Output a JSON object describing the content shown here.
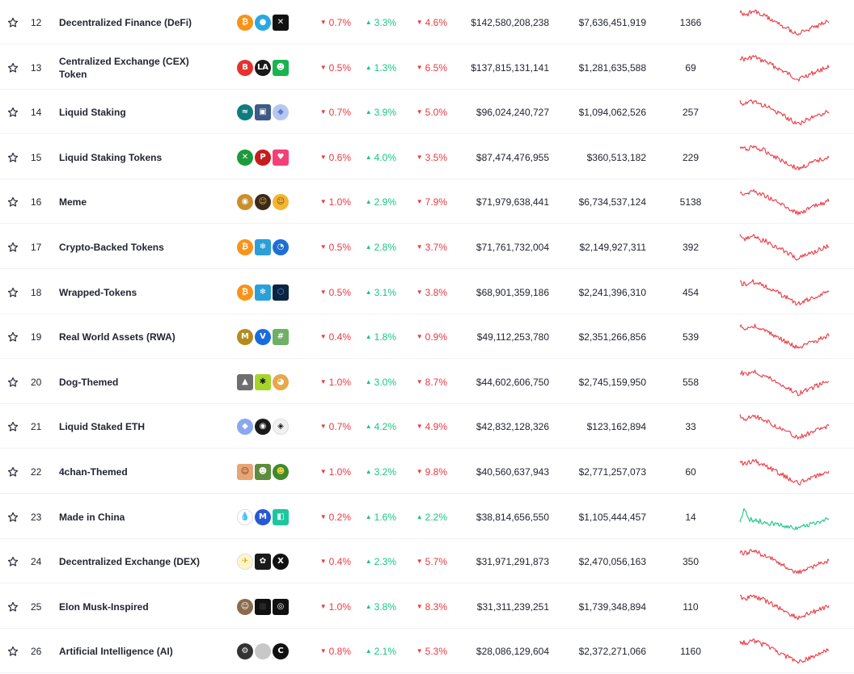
{
  "colors": {
    "down": "#ea3943",
    "up": "#16c784",
    "text": "#222531",
    "border": "#eff2f5"
  },
  "icons": {
    "star": "star-outline-icon",
    "down_arrow": "caret-down-icon",
    "up_arrow": "caret-up-icon"
  },
  "rows": [
    {
      "rank": "12",
      "name": [
        "Decentralized Finance (DeFi)"
      ],
      "coins": [
        [
          "#f7931a",
          "₿",
          "circle",
          "#fff"
        ],
        [
          "#29a9e0",
          "●",
          "circle",
          "#fff"
        ],
        [
          "#111111",
          "✕",
          "sq",
          "#fff"
        ]
      ],
      "p1": "0.7%",
      "p1dir": "down",
      "p2": "3.3%",
      "p2dir": "up",
      "p3": "4.6%",
      "p3dir": "down",
      "mcap": "$142,580,208,238",
      "vol": "$7,636,451,919",
      "count": "1366",
      "trend": "down"
    },
    {
      "rank": "13",
      "name": [
        "Centralized Exchange (CEX)",
        "Token"
      ],
      "coins": [
        [
          "#e6312e",
          "B",
          "circle",
          "#fff"
        ],
        [
          "#1a1a1a",
          "LA",
          "circle",
          "#fff"
        ],
        [
          "#19b34f",
          "☻",
          "sq",
          "#fff"
        ]
      ],
      "p1": "0.5%",
      "p1dir": "down",
      "p2": "1.3%",
      "p2dir": "up",
      "p3": "6.5%",
      "p3dir": "down",
      "mcap": "$137,815,131,141",
      "vol": "$1,281,635,588",
      "count": "69",
      "trend": "down"
    },
    {
      "rank": "14",
      "name": [
        "Liquid Staking"
      ],
      "coins": [
        [
          "#0f7c80",
          "≈",
          "circle",
          "#fff"
        ],
        [
          "#3d5a88",
          "▣",
          "sq",
          "#fff"
        ],
        [
          "#b7c8f0",
          "◆",
          "circle",
          "#5a7bd8"
        ]
      ],
      "p1": "0.7%",
      "p1dir": "down",
      "p2": "3.9%",
      "p2dir": "up",
      "p3": "5.0%",
      "p3dir": "down",
      "mcap": "$96,024,240,727",
      "vol": "$1,094,062,526",
      "count": "257",
      "trend": "down"
    },
    {
      "rank": "15",
      "name": [
        "Liquid Staking Tokens"
      ],
      "coins": [
        [
          "#1c9a3c",
          "✕",
          "circle",
          "#fff"
        ],
        [
          "#c51d1d",
          "P",
          "circle",
          "#fff"
        ],
        [
          "#f43f78",
          "♥",
          "sq",
          "#fff"
        ]
      ],
      "p1": "0.6%",
      "p1dir": "down",
      "p2": "4.0%",
      "p2dir": "up",
      "p3": "3.5%",
      "p3dir": "down",
      "mcap": "$87,474,476,955",
      "vol": "$360,513,182",
      "count": "229",
      "trend": "down"
    },
    {
      "rank": "16",
      "name": [
        "Meme"
      ],
      "coins": [
        [
          "#c98f2c",
          "◉",
          "circle",
          "#fff"
        ],
        [
          "#3a2a1a",
          "☺",
          "circle",
          "#f5b642"
        ],
        [
          "#f2b632",
          "☺",
          "circle",
          "#7a4a10"
        ]
      ],
      "p1": "1.0%",
      "p1dir": "down",
      "p2": "2.9%",
      "p2dir": "up",
      "p3": "7.9%",
      "p3dir": "down",
      "mcap": "$71,979,638,441",
      "vol": "$6,734,537,124",
      "count": "5138",
      "trend": "down"
    },
    {
      "rank": "17",
      "name": [
        "Crypto-Backed Tokens"
      ],
      "coins": [
        [
          "#f7931a",
          "₿",
          "circle",
          "#fff"
        ],
        [
          "#2ba0d8",
          "❄",
          "sq",
          "#fff"
        ],
        [
          "#1f6fd1",
          "◔",
          "circle",
          "#fff"
        ]
      ],
      "p1": "0.5%",
      "p1dir": "down",
      "p2": "2.8%",
      "p2dir": "up",
      "p3": "3.7%",
      "p3dir": "down",
      "mcap": "$71,761,732,004",
      "vol": "$2,149,927,311",
      "count": "392",
      "trend": "down"
    },
    {
      "rank": "18",
      "name": [
        "Wrapped-Tokens"
      ],
      "coins": [
        [
          "#f7931a",
          "₿",
          "circle",
          "#fff"
        ],
        [
          "#2ba0d8",
          "❄",
          "sq",
          "#fff"
        ],
        [
          "#0b2440",
          "⬡",
          "sq",
          "#3fa0ff"
        ]
      ],
      "p1": "0.5%",
      "p1dir": "down",
      "p2": "3.1%",
      "p2dir": "up",
      "p3": "3.8%",
      "p3dir": "down",
      "mcap": "$68,901,359,186",
      "vol": "$2,241,396,310",
      "count": "454",
      "trend": "down"
    },
    {
      "rank": "19",
      "name": [
        "Real World Assets (RWA)"
      ],
      "coins": [
        [
          "#b58a1d",
          "M",
          "circle",
          "#fff"
        ],
        [
          "#1a6be0",
          "V",
          "circle",
          "#fff"
        ],
        [
          "#6fb066",
          "#",
          "sq",
          "#fff"
        ]
      ],
      "p1": "0.4%",
      "p1dir": "down",
      "p2": "1.8%",
      "p2dir": "up",
      "p3": "0.9%",
      "p3dir": "down",
      "mcap": "$49,112,253,780",
      "vol": "$2,351,266,856",
      "count": "539",
      "trend": "down"
    },
    {
      "rank": "20",
      "name": [
        "Dog-Themed"
      ],
      "coins": [
        [
          "#6e6e6e",
          "▲",
          "sq",
          "#fff"
        ],
        [
          "#a4d62a",
          "✱",
          "sq",
          "#1a1a1a"
        ],
        [
          "#e5a84a",
          "◕",
          "circle",
          "#fff"
        ]
      ],
      "p1": "1.0%",
      "p1dir": "down",
      "p2": "3.0%",
      "p2dir": "up",
      "p3": "8.7%",
      "p3dir": "down",
      "mcap": "$44,602,606,750",
      "vol": "$2,745,159,950",
      "count": "558",
      "trend": "down"
    },
    {
      "rank": "21",
      "name": [
        "Liquid Staked ETH"
      ],
      "coins": [
        [
          "#8aa8ee",
          "◆",
          "circle",
          "#fff"
        ],
        [
          "#1a1a1a",
          "◉",
          "circle",
          "#fff"
        ],
        [
          "#f1f1f1",
          "◈",
          "circle",
          "#1a1a1a"
        ]
      ],
      "p1": "0.7%",
      "p1dir": "down",
      "p2": "4.2%",
      "p2dir": "up",
      "p3": "4.9%",
      "p3dir": "down",
      "mcap": "$42,832,128,326",
      "vol": "$123,162,894",
      "count": "33",
      "trend": "down"
    },
    {
      "rank": "22",
      "name": [
        "4chan-Themed"
      ],
      "coins": [
        [
          "#e7a574",
          "☺",
          "sq",
          "#6b3a1c"
        ],
        [
          "#5c8d3e",
          "☻",
          "sq",
          "#fff"
        ],
        [
          "#3f8a2a",
          "☻",
          "circle",
          "#f2d04a"
        ]
      ],
      "p1": "1.0%",
      "p1dir": "down",
      "p2": "3.2%",
      "p2dir": "up",
      "p3": "9.8%",
      "p3dir": "down",
      "mcap": "$40,560,637,943",
      "vol": "$2,771,257,073",
      "count": "60",
      "trend": "down"
    },
    {
      "rank": "23",
      "name": [
        "Made in China"
      ],
      "coins": [
        [
          "#ffffff",
          "💧",
          "circle",
          "#1f6fd1"
        ],
        [
          "#2958d6",
          "M",
          "circle",
          "#fff"
        ],
        [
          "#1cc7a0",
          "◧",
          "sq",
          "#fff"
        ]
      ],
      "p1": "0.2%",
      "p1dir": "down",
      "p2": "1.6%",
      "p2dir": "up",
      "p3": "2.2%",
      "p3dir": "up",
      "mcap": "$38,814,656,550",
      "vol": "$1,105,444,457",
      "count": "14",
      "trend": "up"
    },
    {
      "rank": "24",
      "name": [
        "Decentralized Exchange (DEX)"
      ],
      "coins": [
        [
          "#fff6c8",
          "✈",
          "circle",
          "#d8a62a"
        ],
        [
          "#1a1a1a",
          "✿",
          "sq",
          "#fff"
        ],
        [
          "#111111",
          "X",
          "circle",
          "#fff"
        ]
      ],
      "p1": "0.4%",
      "p1dir": "down",
      "p2": "2.3%",
      "p2dir": "up",
      "p3": "5.7%",
      "p3dir": "down",
      "mcap": "$31,971,291,873",
      "vol": "$2,470,056,163",
      "count": "350",
      "trend": "down"
    },
    {
      "rank": "25",
      "name": [
        "Elon Musk-Inspired"
      ],
      "coins": [
        [
          "#8a6a4a",
          "☺",
          "circle",
          "#fff"
        ],
        [
          "#111111",
          "▦",
          "sq",
          "#333"
        ],
        [
          "#111111",
          "◎",
          "sq",
          "#fff"
        ]
      ],
      "p1": "1.0%",
      "p1dir": "down",
      "p2": "3.8%",
      "p2dir": "up",
      "p3": "8.3%",
      "p3dir": "down",
      "mcap": "$31,311,239,251",
      "vol": "$1,739,348,894",
      "count": "110",
      "trend": "down"
    },
    {
      "rank": "26",
      "name": [
        "Artificial Intelligence (AI)"
      ],
      "coins": [
        [
          "#333333",
          "⚙",
          "circle",
          "#fff"
        ],
        [
          "#c8c8c8",
          "",
          "circle",
          "#fff"
        ],
        [
          "#111111",
          "C",
          "circle",
          "#fff"
        ]
      ],
      "p1": "0.8%",
      "p1dir": "down",
      "p2": "2.1%",
      "p2dir": "up",
      "p3": "5.3%",
      "p3dir": "down",
      "mcap": "$28,086,129,604",
      "vol": "$2,372,271,066",
      "count": "1160",
      "trend": "down"
    }
  ]
}
